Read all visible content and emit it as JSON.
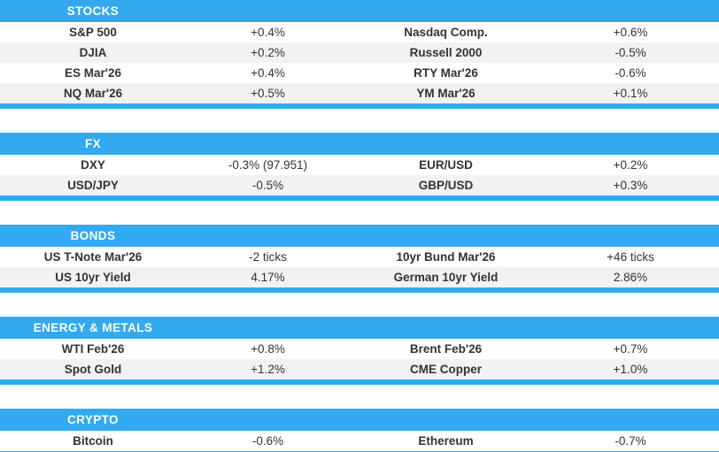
{
  "colors": {
    "accent_blue": "#33A9F0",
    "row_stripe": "#F2F2F2",
    "text": "#333333",
    "header_text": "#FFFFFF"
  },
  "table": {
    "description": "Market summary table with paired instrument/change columns",
    "sections": [
      {
        "title": "STOCKS",
        "rows": [
          [
            "S&P 500",
            "+0.4%",
            "Nasdaq Comp.",
            "+0.6%"
          ],
          [
            "DJIA",
            "+0.2%",
            "Russell 2000",
            "-0.5%"
          ],
          [
            "ES Mar'26",
            "+0.4%",
            "RTY Mar'26",
            "-0.6%"
          ],
          [
            "NQ Mar'26",
            "+0.5%",
            "YM Mar'26",
            "+0.1%"
          ]
        ]
      },
      {
        "title": "FX",
        "rows": [
          [
            "DXY",
            "-0.3% (97.951)",
            "EUR/USD",
            "+0.2%"
          ],
          [
            "USD/JPY",
            "-0.5%",
            "GBP/USD",
            "+0.3%"
          ]
        ]
      },
      {
        "title": "BONDS",
        "rows": [
          [
            "US T-Note Mar'26",
            "-2 ticks",
            "10yr Bund Mar'26",
            "+46 ticks"
          ],
          [
            "US 10yr Yield",
            "4.17%",
            "German 10yr Yield",
            "2.86%"
          ]
        ]
      },
      {
        "title": "ENERGY & METALS",
        "rows": [
          [
            "WTI Feb'26",
            "+0.8%",
            "Brent Feb'26",
            "+0.7%"
          ],
          [
            "Spot Gold",
            "+1.2%",
            "CME Copper",
            "+1.0%"
          ]
        ]
      },
      {
        "title": "CRYPTO",
        "rows": [
          [
            "Bitcoin",
            "-0.6%",
            "Ethereum",
            "-0.7%"
          ]
        ]
      }
    ]
  }
}
